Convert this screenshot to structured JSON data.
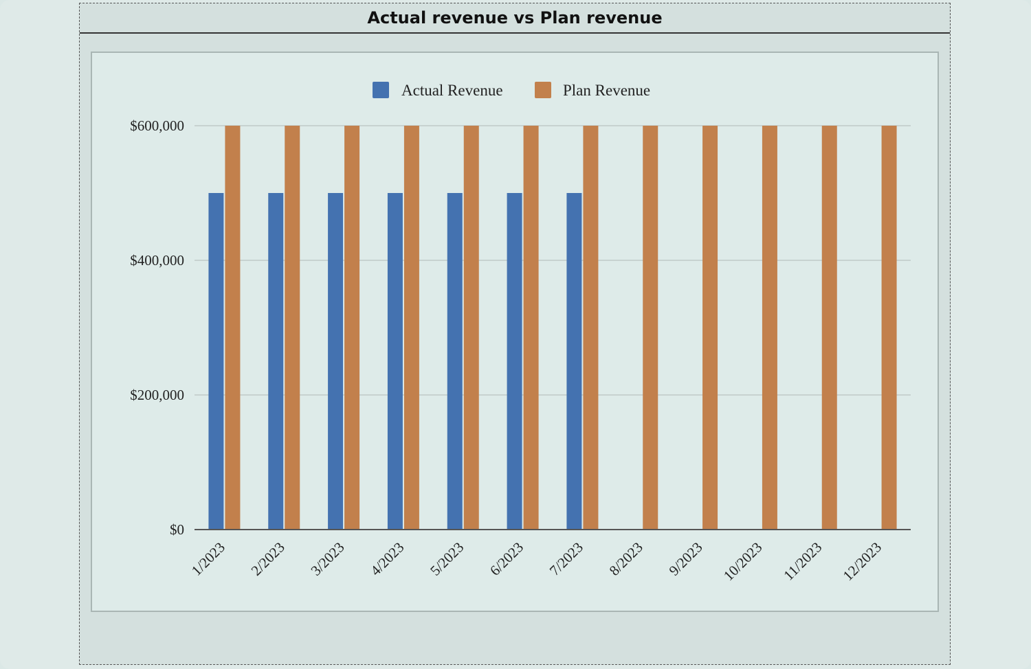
{
  "panel": {
    "title": "Actual revenue vs Plan revenue"
  },
  "chart_data": {
    "type": "bar",
    "title": "Actual revenue vs Plan revenue",
    "xlabel": "",
    "ylabel": "",
    "ylim": [
      0,
      600000
    ],
    "yticks": [
      0,
      200000,
      400000,
      600000
    ],
    "ytick_labels": [
      "$0",
      "$200,000",
      "$400,000",
      "$600,000"
    ],
    "grid": true,
    "legend_position": "top-center",
    "categories": [
      "1/2023",
      "2/2023",
      "3/2023",
      "4/2023",
      "5/2023",
      "6/2023",
      "7/2023",
      "8/2023",
      "9/2023",
      "10/2023",
      "11/2023",
      "12/2023"
    ],
    "series": [
      {
        "name": "Actual Revenue",
        "color": "#4472b0",
        "values": [
          500000,
          500000,
          500000,
          500000,
          500000,
          500000,
          500000,
          null,
          null,
          null,
          null,
          null
        ]
      },
      {
        "name": "Plan Revenue",
        "color": "#c2804c",
        "values": [
          600000,
          600000,
          600000,
          600000,
          600000,
          600000,
          600000,
          600000,
          600000,
          600000,
          600000,
          600000
        ]
      }
    ]
  }
}
